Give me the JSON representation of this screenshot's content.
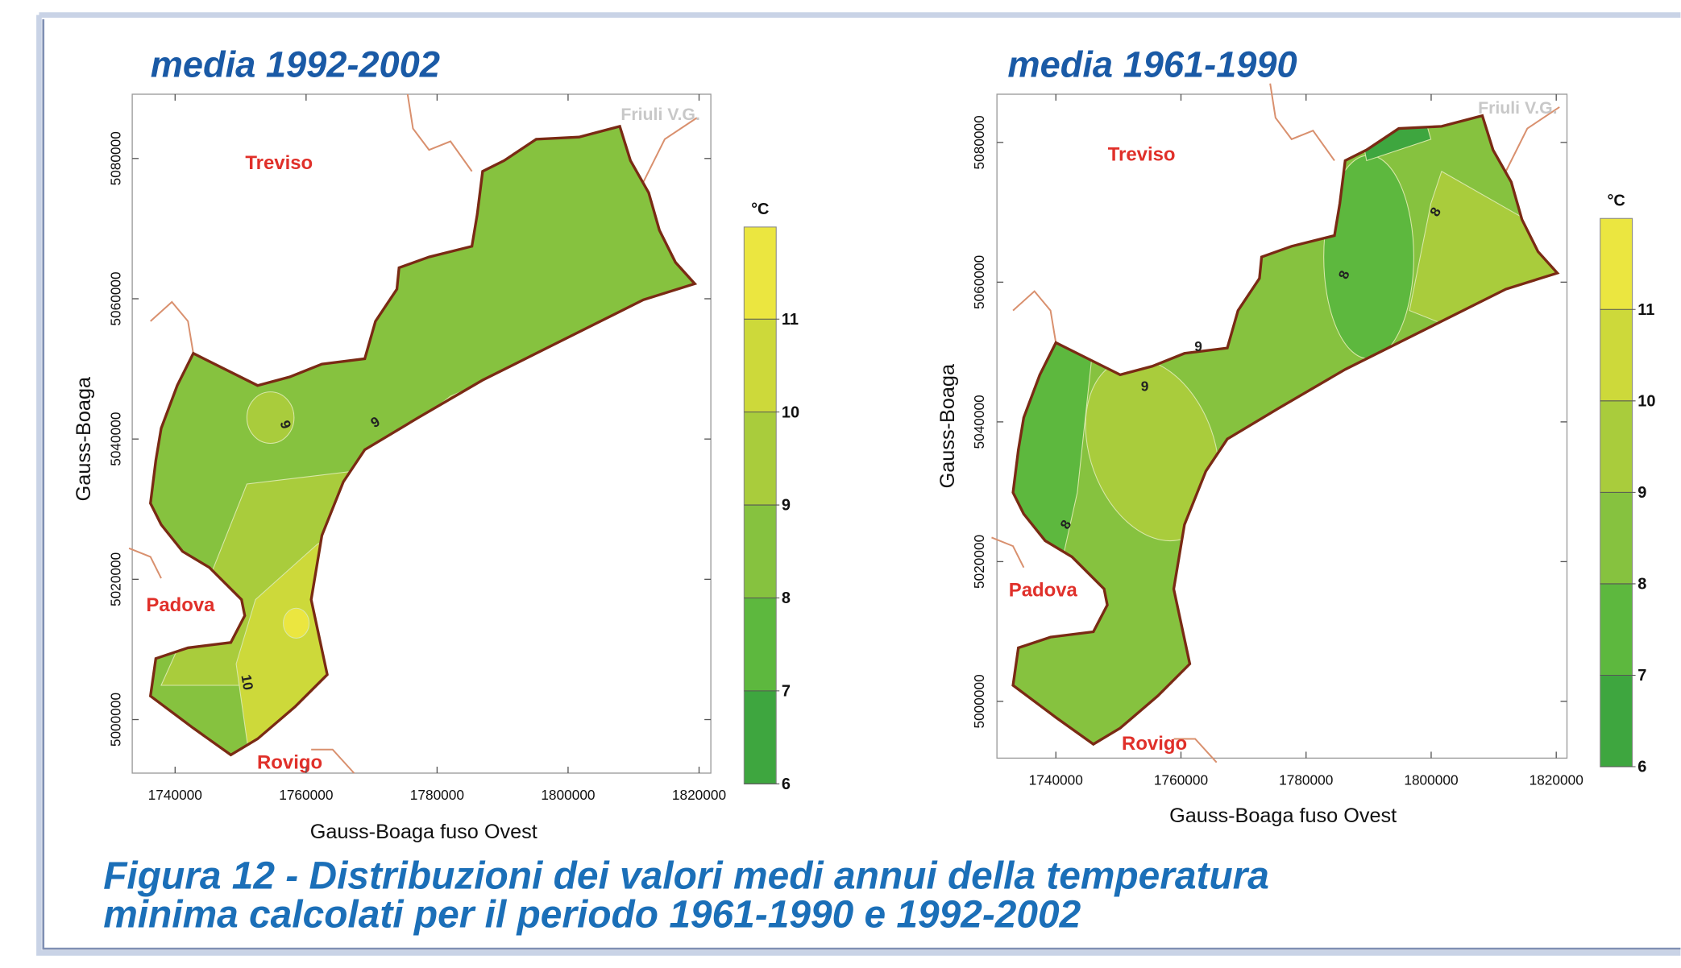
{
  "panels": [
    {
      "title": "media 1992-2002",
      "x_label": "Gauss-Boaga fuso Ovest",
      "y_label": "Gauss-Boaga",
      "x_ticks": [
        1740000,
        1760000,
        1780000,
        1800000,
        1820000
      ],
      "y_ticks": [
        5000000,
        5020000,
        5040000,
        5060000,
        5080000
      ],
      "colorbar": {
        "unit": "°C",
        "ticks": [
          6,
          7,
          8,
          9,
          10,
          11
        ],
        "colors": [
          "#3ea63f",
          "#5db83e",
          "#86c23f",
          "#a9cc3c",
          "#cdd93a",
          "#ebe640"
        ]
      },
      "places": [
        "Treviso",
        "Padova",
        "Rovigo",
        "Friuli V.G."
      ],
      "contour_labels": [
        "9",
        "9",
        "10"
      ]
    },
    {
      "title": "media 1961-1990",
      "x_label": "Gauss-Boaga fuso Ovest",
      "y_label": "Gauss-Boaga",
      "x_ticks": [
        1740000,
        1760000,
        1780000,
        1800000,
        1820000
      ],
      "y_ticks": [
        5000000,
        5020000,
        5040000,
        5060000,
        5080000
      ],
      "colorbar": {
        "unit": "°C",
        "ticks": [
          6,
          7,
          8,
          9,
          10,
          11
        ],
        "colors": [
          "#3ea63f",
          "#5db83e",
          "#86c23f",
          "#a9cc3c",
          "#cdd93a",
          "#ebe640"
        ]
      },
      "places": [
        "Treviso",
        "Padova",
        "Rovigo",
        "Friuli V.G."
      ],
      "contour_labels": [
        "8",
        "9",
        "9",
        "8",
        "8"
      ]
    }
  ],
  "caption": [
    "Figura 12 - Distribuzioni dei valori medi annui della temperatura",
    "minima calcolati per il periodo 1961-1990 e 1992-2002"
  ]
}
